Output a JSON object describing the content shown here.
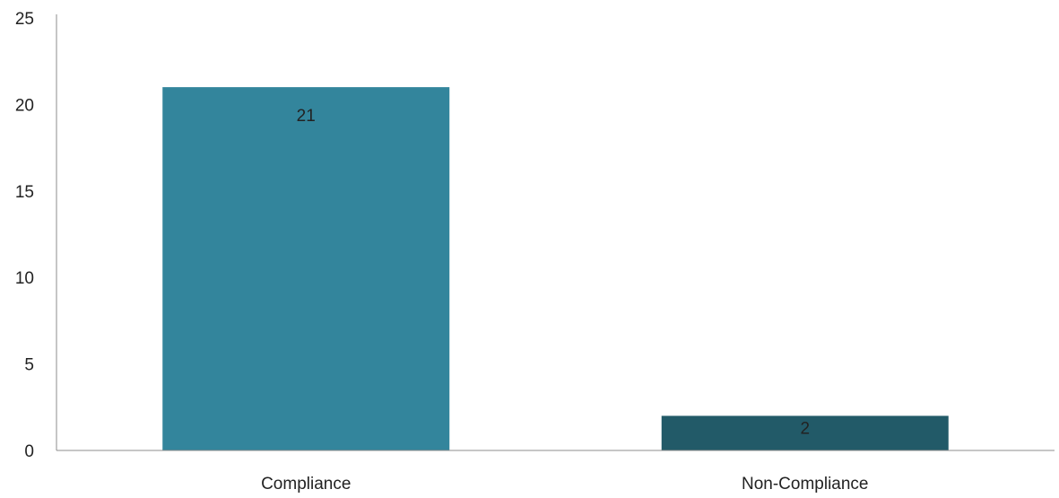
{
  "chart_data": {
    "type": "bar",
    "categories": [
      "Compliance",
      "Non-Compliance"
    ],
    "values": [
      21,
      2
    ],
    "data_labels": [
      "21",
      "2"
    ],
    "title": "",
    "xlabel": "",
    "ylabel": "",
    "ylim": [
      0,
      25
    ],
    "yticks": [
      0,
      5,
      10,
      15,
      20,
      25
    ],
    "ytick_labels": [
      "0",
      "5",
      "10",
      "15",
      "20",
      "25"
    ],
    "grid": false,
    "legend": "none",
    "colors": [
      "#33859c",
      "#225a68"
    ],
    "axis_color": "#8c8c8c"
  }
}
